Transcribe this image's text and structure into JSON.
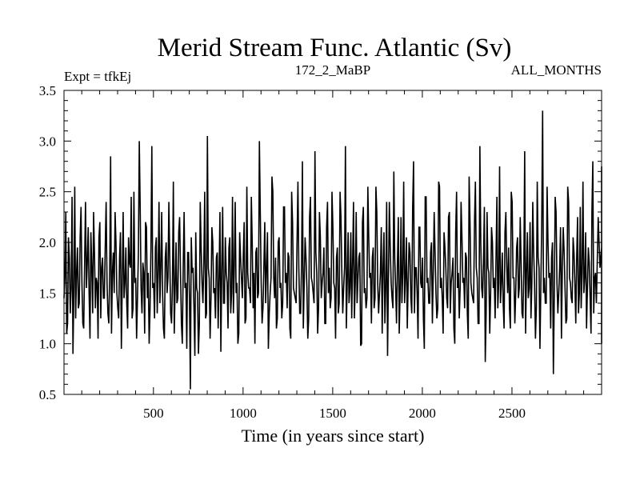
{
  "chart_data": {
    "type": "line",
    "title": "Merid Stream Func. Atlantic (Sv)",
    "subtitle_left": "Expt = tfkEj",
    "subtitle_center": "172_2_MaBP",
    "subtitle_right": "ALL_MONTHS",
    "xlabel": "Time (in years since start)",
    "ylabel": "",
    "xlim": [
      1,
      3000
    ],
    "ylim": [
      0.5,
      3.5
    ],
    "x_ticks": [
      500,
      1000,
      1500,
      2000,
      2500
    ],
    "y_ticks": [
      0.5,
      1.0,
      1.5,
      2.0,
      2.5,
      3.0,
      3.5
    ],
    "x_tick_labels": [
      "500",
      "1000",
      "1500",
      "2000",
      "2500"
    ],
    "y_tick_labels": [
      "0.5",
      "1.0",
      "1.5",
      "2.0",
      "2.5",
      "3.0",
      "3.5"
    ],
    "grid": false,
    "line_color": "#000000",
    "series": [
      {
        "x_start": 1,
        "x_step": 10,
        "values": [
          1.45,
          2.3,
          1.2,
          1.85,
          1.55,
          0.9,
          2.55,
          1.7,
          1.35,
          2.05,
          1.6,
          1.15,
          2.4,
          1.8,
          1.5,
          2.1,
          1.3,
          1.9,
          1.65,
          1.05,
          2.2,
          1.75,
          1.45,
          1.95,
          1.6,
          1.2,
          2.85,
          1.7,
          1.5,
          2.0,
          1.35,
          1.85,
          0.95,
          2.3,
          1.6,
          1.4,
          2.05,
          1.75,
          1.25,
          2.5,
          1.65,
          1.45,
          3.0,
          1.55,
          1.8,
          1.1,
          2.15,
          1.7,
          1.35,
          2.95,
          1.6,
          1.95,
          1.3,
          2.4,
          1.75,
          1.5,
          1.05,
          2.0,
          1.65,
          1.85,
          1.2,
          2.6,
          1.55,
          1.4,
          2.1,
          1.7,
          1.0,
          2.3,
          1.6,
          1.9,
          1.45,
          2.05,
          1.75,
          0.88,
          1.55,
          0.9,
          2.4,
          1.6,
          1.8,
          1.25,
          3.05,
          1.65,
          1.45,
          2.0,
          1.55,
          1.85,
          1.15,
          2.3,
          1.7,
          1.4,
          2.05,
          1.6,
          1.95,
          1.3,
          2.45,
          1.75,
          1.5,
          1.0,
          2.1,
          1.65,
          1.85,
          1.2,
          2.55,
          1.55,
          1.4,
          2.0,
          1.7,
          1.9,
          1.45,
          3.0,
          1.6,
          1.35,
          2.2,
          1.75,
          0.95,
          1.5,
          2.65,
          1.65,
          1.85,
          1.25,
          2.05,
          1.6,
          1.4,
          2.35,
          1.7,
          1.9,
          1.15,
          2.5,
          1.55,
          1.45,
          2.0,
          1.75,
          1.3,
          2.8,
          1.6,
          1.85,
          1.05,
          2.25,
          1.65,
          1.5,
          2.9,
          1.7,
          1.35,
          2.05,
          1.6,
          1.95,
          1.2,
          2.4,
          1.75,
          1.45,
          2.15,
          1.55,
          1.85,
          1.3,
          2.5,
          1.7,
          1.55,
          2.95,
          1.6,
          1.4,
          2.1,
          1.8,
          1.25,
          2.3,
          1.65,
          1.9,
          1.0,
          2.35,
          1.55,
          1.45,
          2.05,
          1.7,
          1.85,
          1.35,
          2.55,
          1.6,
          1.5,
          2.15,
          1.75,
          1.2,
          2.4,
          1.65,
          1.95,
          1.45,
          2.7,
          1.55,
          1.8,
          1.1,
          2.25,
          1.7,
          1.4,
          2.05,
          1.6,
          1.9,
          1.3,
          2.8,
          1.75,
          1.5,
          2.15,
          1.6,
          1.85,
          0.95,
          2.45,
          1.65,
          1.4,
          2.0,
          1.7,
          1.9,
          1.25,
          2.6,
          1.55,
          1.45,
          2.1,
          1.75,
          1.35,
          2.3,
          1.6,
          1.85,
          1.0,
          2.5,
          1.7,
          1.55,
          2.05,
          1.65,
          1.9,
          1.3,
          2.65,
          1.6,
          1.45,
          2.2,
          1.75,
          1.2,
          2.95,
          1.55,
          1.8,
          0.82,
          2.3,
          1.7,
          1.5,
          2.0,
          1.65,
          1.85,
          1.35,
          2.75,
          1.6,
          1.4,
          2.1,
          1.75,
          1.95,
          1.15,
          2.4,
          1.65,
          1.5,
          2.05,
          1.55,
          1.8,
          1.25,
          2.9,
          1.7,
          1.45,
          2.2,
          1.6,
          1.9,
          1.05,
          2.6,
          1.75,
          1.55,
          3.3,
          1.65,
          1.4,
          2.0,
          1.7,
          1.85,
          0.7,
          2.45,
          1.6,
          1.5,
          2.15,
          1.75,
          1.9,
          1.2,
          2.55,
          1.65,
          1.45,
          2.05,
          1.6,
          1.85,
          1.3,
          2.35,
          1.7,
          1.5,
          2.1,
          1.55,
          1.8,
          1.1,
          2.8,
          1.65,
          1.4,
          2.25,
          1.75,
          1.95,
          1.0,
          2.5,
          1.6,
          1.45,
          2.05,
          1.7,
          1.85,
          1.3,
          2.75,
          1.6,
          1.5,
          1.05
        ]
      },
      {
        "x_start": 6,
        "x_step": 10,
        "values": [
          1.65,
          1.1,
          2.05,
          1.3,
          2.45,
          1.5,
          1.25,
          1.95,
          1.4,
          2.35,
          1.2,
          1.8,
          1.55,
          2.15,
          1.05,
          1.75,
          2.3,
          1.35,
          1.6,
          2.05,
          1.25,
          1.85,
          1.45,
          2.4,
          1.3,
          1.7,
          1.1,
          1.9,
          2.3,
          1.5,
          1.25,
          2.1,
          1.6,
          1.45,
          1.95,
          1.15,
          1.8,
          2.45,
          1.35,
          1.6,
          1.05,
          1.9,
          2.35,
          1.3,
          1.7,
          2.2,
          1.45,
          1.0,
          1.95,
          1.55,
          1.25,
          2.05,
          1.7,
          1.4,
          2.3,
          1.15,
          1.85,
          1.5,
          2.4,
          1.3,
          1.6,
          1.1,
          2.0,
          1.45,
          2.25,
          1.2,
          1.75,
          1.55,
          0.95,
          1.9,
          0.55,
          1.7,
          1.35,
          2.1,
          1.5,
          1.2,
          1.95,
          1.4,
          2.5,
          1.3,
          1.75,
          1.05,
          2.15,
          1.5,
          1.25,
          1.9,
          1.65,
          0.92,
          2.35,
          1.4,
          1.7,
          1.15,
          2.05,
          1.5,
          1.3,
          2.4,
          1.6,
          1.1,
          1.85,
          1.45,
          2.2,
          1.25,
          1.7,
          1.55,
          2.45,
          1.35,
          1.0,
          1.95,
          1.5,
          2.3,
          1.2,
          1.75,
          1.4,
          2.1,
          1.3,
          1.65,
          2.5,
          1.45,
          1.15,
          2.0,
          1.55,
          1.25,
          2.35,
          1.6,
          1.35,
          1.85,
          1.05,
          2.2,
          1.5,
          1.4,
          2.6,
          1.3,
          1.75,
          1.15,
          2.05,
          1.55,
          1.25,
          2.45,
          1.6,
          1.4,
          1.9,
          1.1,
          2.3,
          1.45,
          1.7,
          1.2,
          2.15,
          1.5,
          1.35,
          2.5,
          1.6,
          1.05,
          1.95,
          1.4,
          2.25,
          1.3,
          1.75,
          1.15,
          2.1,
          1.55,
          1.25,
          2.4,
          1.6,
          1.4,
          1.85,
          0.98,
          2.2,
          1.5,
          1.35,
          2.55,
          1.65,
          1.2,
          1.95,
          1.45,
          2.3,
          1.3,
          1.7,
          1.1,
          2.1,
          1.55,
          0.88,
          2.4,
          1.6,
          1.35,
          1.85,
          1.2,
          2.25,
          1.5,
          1.4,
          2.6,
          1.65,
          1.15,
          2.0,
          1.45,
          2.35,
          1.3,
          1.75,
          1.05,
          2.15,
          1.55,
          1.25,
          2.45,
          1.6,
          1.4,
          1.9,
          1.2,
          2.3,
          1.5,
          1.35,
          2.55,
          1.65,
          1.1,
          1.95,
          1.45,
          2.25,
          1.3,
          1.7,
          1.15,
          2.1,
          1.55,
          1.25,
          2.4,
          1.6,
          1.35,
          1.85,
          1.05,
          2.2,
          1.5,
          1.4,
          2.6,
          1.65,
          1.2,
          2.0,
          1.45,
          2.35,
          1.3,
          1.75,
          1.1,
          2.15,
          1.55,
          1.25,
          2.45,
          1.6,
          1.4,
          1.9,
          1.15,
          2.3,
          1.5,
          1.35,
          2.5,
          1.65,
          1.2,
          1.95,
          1.45,
          2.25,
          1.3,
          1.7,
          1.1,
          2.1,
          1.55,
          1.25,
          2.4,
          1.6,
          1.35,
          1.85,
          0.95,
          2.2,
          1.5,
          1.4,
          2.55,
          1.65,
          1.15,
          2.0,
          1.45,
          2.3,
          1.3,
          1.75,
          1.05,
          2.15,
          1.55,
          1.25,
          2.4,
          1.6,
          1.4,
          1.9,
          1.2,
          2.25,
          1.5,
          1.35,
          2.6,
          1.65,
          1.15,
          1.95,
          1.45,
          2.3,
          1.3,
          1.7
        ]
      }
    ]
  }
}
